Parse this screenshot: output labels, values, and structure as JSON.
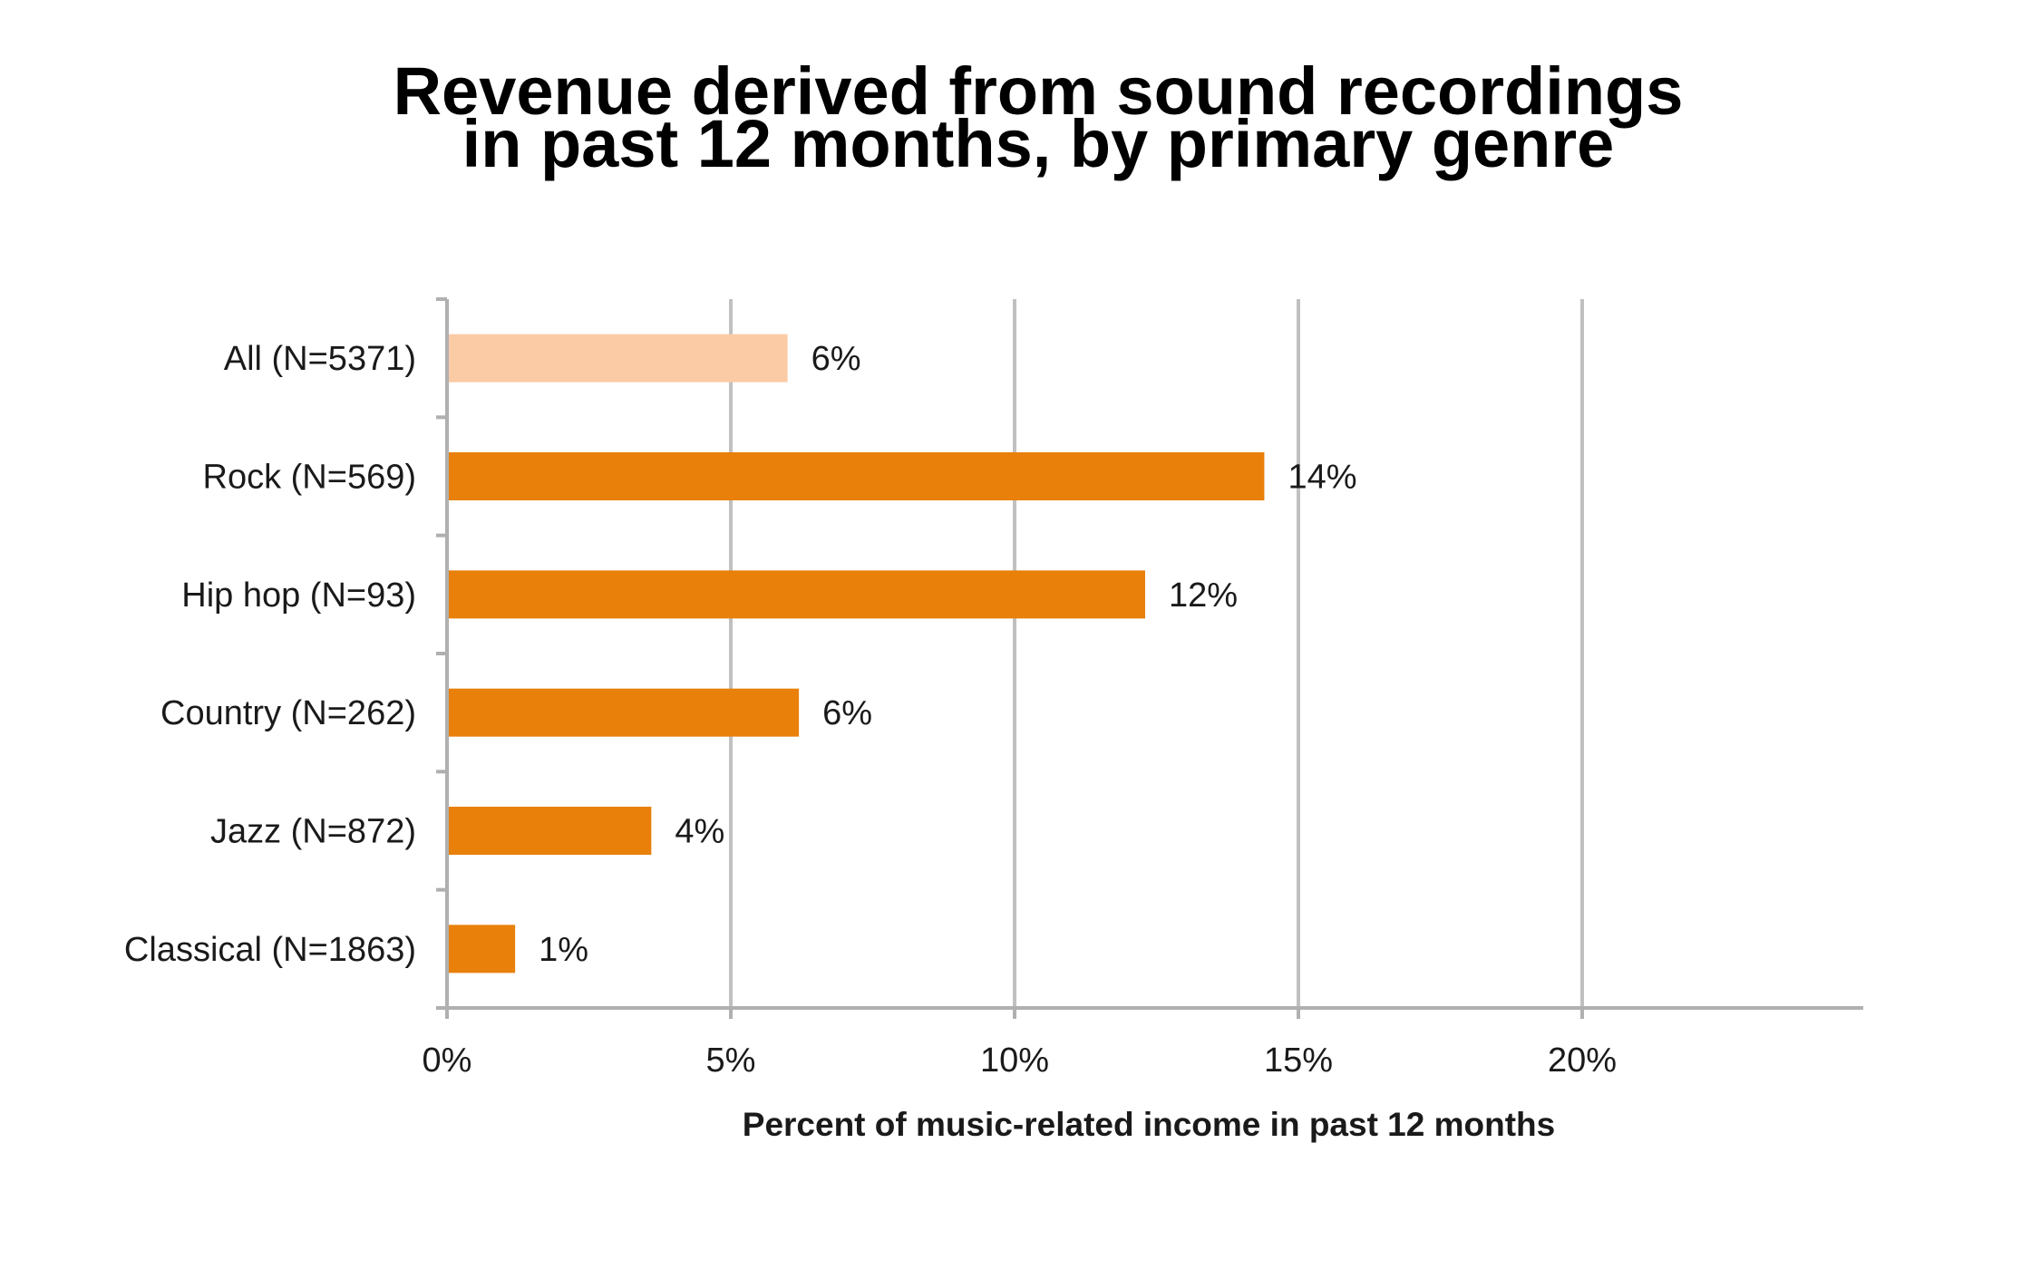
{
  "chart_data": {
    "type": "bar",
    "orientation": "horizontal",
    "title_lines": [
      "Revenue derived from sound recordings",
      "in past 12 months, by primary genre"
    ],
    "xlabel": "Percent of music-related income in past 12 months",
    "ylabel": "",
    "xlim": [
      0,
      24
    ],
    "xticks": [
      0,
      5,
      10,
      15,
      20
    ],
    "xtick_labels": [
      "0%",
      "5%",
      "10%",
      "15%",
      "20%"
    ],
    "grid": "vertical",
    "legend": "none",
    "categories": [
      "All (N=5371)",
      "Rock (N=569)",
      "Hip hop (N=93)",
      "Country (N=262)",
      "Jazz (N=872)",
      "Classical (N=1863)"
    ],
    "values": [
      6.0,
      14.4,
      12.3,
      6.2,
      3.6,
      1.2
    ],
    "data_labels": [
      "6%",
      "14%",
      "12%",
      "6%",
      "4%",
      "1%"
    ],
    "colors": {
      "highlight": "#FBCBA6",
      "bar": "#E8800A",
      "grid": "#C0C0C0",
      "axis": "#B0B0B0"
    },
    "bar_color_keys": [
      "highlight",
      "bar",
      "bar",
      "bar",
      "bar",
      "bar"
    ]
  }
}
